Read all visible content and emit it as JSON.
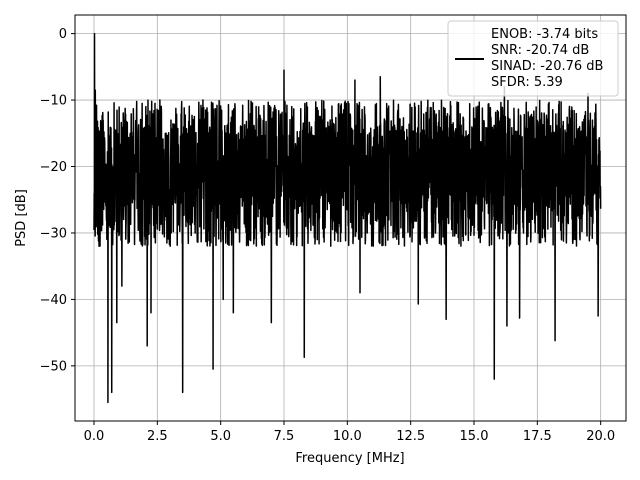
{
  "chart_data": {
    "type": "line",
    "title": "",
    "xlabel": "Frequency [MHz]",
    "ylabel": "PSD [dB]",
    "xlim": [
      -0.75,
      21.0
    ],
    "ylim": [
      -58.3,
      2.8
    ],
    "xticks": [
      0.0,
      2.5,
      5.0,
      7.5,
      10.0,
      12.5,
      15.0,
      17.5,
      20.0
    ],
    "xtick_labels": [
      "0.0",
      "2.5",
      "5.0",
      "7.5",
      "10.0",
      "12.5",
      "15.0",
      "17.5",
      "20.0"
    ],
    "yticks": [
      0,
      -10,
      -20,
      -30,
      -40,
      -50
    ],
    "ytick_labels": [
      "0",
      "−10",
      "−20",
      "−30",
      "−40",
      "−50"
    ],
    "grid": true,
    "legend_position": "top-right",
    "legend_lines": [
      "ENOB: -3.74 bits",
      "SNR: -20.74 dB",
      "SINAD: -20.76 dB",
      "SFDR: 5.39"
    ],
    "series": [
      {
        "color": "#000000",
        "x_range": [
          0.0,
          20.0
        ],
        "typical_range_db": [
          -26.0,
          -14.0
        ],
        "peaks": [
          {
            "x": 0.02,
            "y": 0.0
          },
          {
            "x": 0.05,
            "y": -8.5
          },
          {
            "x": 1.9,
            "y": -10.5
          },
          {
            "x": 2.6,
            "y": -10.0
          },
          {
            "x": 4.3,
            "y": -10.0
          },
          {
            "x": 7.5,
            "y": -5.5
          },
          {
            "x": 8.3,
            "y": -7.5
          },
          {
            "x": 10.3,
            "y": -7.0
          },
          {
            "x": 11.3,
            "y": -6.5
          },
          {
            "x": 15.8,
            "y": -9.0
          },
          {
            "x": 16.2,
            "y": -8.0
          },
          {
            "x": 19.5,
            "y": -9.0
          }
        ],
        "dips": [
          {
            "x": 0.2,
            "y": -32.0
          },
          {
            "x": 0.55,
            "y": -55.5
          },
          {
            "x": 0.7,
            "y": -54.0
          },
          {
            "x": 0.9,
            "y": -43.5
          },
          {
            "x": 1.1,
            "y": -38.0
          },
          {
            "x": 2.1,
            "y": -47.0
          },
          {
            "x": 2.25,
            "y": -42.0
          },
          {
            "x": 3.5,
            "y": -54.0
          },
          {
            "x": 4.7,
            "y": -50.5
          },
          {
            "x": 5.1,
            "y": -40.0
          },
          {
            "x": 5.5,
            "y": -42.0
          },
          {
            "x": 7.0,
            "y": -43.5
          },
          {
            "x": 8.3,
            "y": -48.7
          },
          {
            "x": 10.5,
            "y": -39.0
          },
          {
            "x": 12.8,
            "y": -40.7
          },
          {
            "x": 13.9,
            "y": -43.0
          },
          {
            "x": 15.8,
            "y": -52.0
          },
          {
            "x": 16.3,
            "y": -44.0
          },
          {
            "x": 16.8,
            "y": -42.8
          },
          {
            "x": 18.2,
            "y": -46.2
          },
          {
            "x": 19.9,
            "y": -42.5
          }
        ]
      }
    ]
  }
}
